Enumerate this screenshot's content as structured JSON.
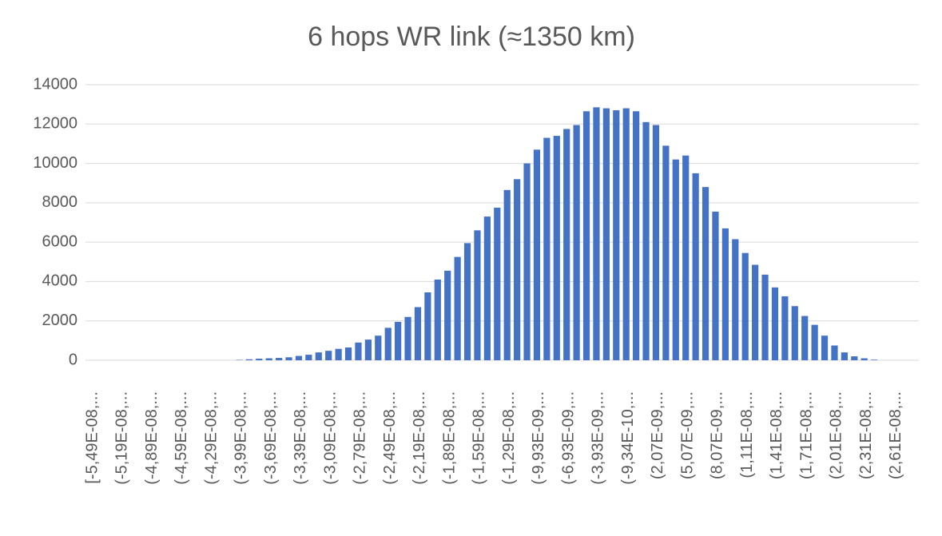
{
  "chart_data": {
    "type": "bar",
    "title": "6 hops WR link (≈1350 km)",
    "categories": [
      "[-5,49E-08,...",
      null,
      null,
      "(-5,19E-08,...",
      null,
      null,
      "(-4,89E-08,...",
      null,
      null,
      "(-4,59E-08,...",
      null,
      null,
      "(-4,29E-08,...",
      null,
      null,
      "(-3,99E-08,...",
      null,
      null,
      "(-3,69E-08,...",
      null,
      null,
      "(-3,39E-08,...",
      null,
      null,
      "(-3,09E-08,...",
      null,
      null,
      "(-2,79E-08,...",
      null,
      null,
      "(-2,49E-08,...",
      null,
      null,
      "(-2,19E-08,...",
      null,
      null,
      "(-1,89E-08,...",
      null,
      null,
      "(-1,59E-08,...",
      null,
      null,
      "(-1,29E-08,...",
      null,
      null,
      "(-9,93E-09,...",
      null,
      null,
      "(-6,93E-09,...",
      null,
      null,
      "(-3,93E-09,...",
      null,
      null,
      "(-9,34E-10,...",
      null,
      null,
      "(2,07E-09,...",
      null,
      null,
      "(5,07E-09,...",
      null,
      null,
      "(8,07E-09,...",
      null,
      null,
      "(1,11E-08,...",
      null,
      null,
      "(1,41E-08,...",
      null,
      null,
      "(1,71E-08,...",
      null,
      null,
      "(2,01E-08,...",
      null,
      null,
      "(2,31E-08,...",
      null,
      null,
      "(2,61E-08,...",
      null,
      null
    ],
    "values": [
      0,
      0,
      0,
      0,
      0,
      0,
      0,
      0,
      0,
      0,
      0,
      0,
      0,
      0,
      0,
      20,
      50,
      80,
      100,
      120,
      150,
      220,
      280,
      400,
      480,
      580,
      650,
      900,
      1050,
      1250,
      1650,
      1950,
      2200,
      2700,
      3450,
      4100,
      4550,
      5250,
      5950,
      6600,
      7300,
      7750,
      8650,
      9200,
      10000,
      10700,
      11300,
      11400,
      11750,
      11950,
      12650,
      12850,
      12800,
      12700,
      12800,
      12650,
      12100,
      11950,
      10900,
      10200,
      10400,
      9500,
      8800,
      7550,
      6700,
      6150,
      5450,
      4850,
      4350,
      3700,
      3250,
      2750,
      2250,
      1800,
      1250,
      750,
      400,
      200,
      100,
      30,
      0,
      0,
      0,
      0
    ],
    "color": "#4472c4",
    "ylim": [
      0,
      14000
    ],
    "yticks": [
      0,
      2000,
      4000,
      6000,
      8000,
      10000,
      12000,
      14000
    ],
    "grid": true
  }
}
